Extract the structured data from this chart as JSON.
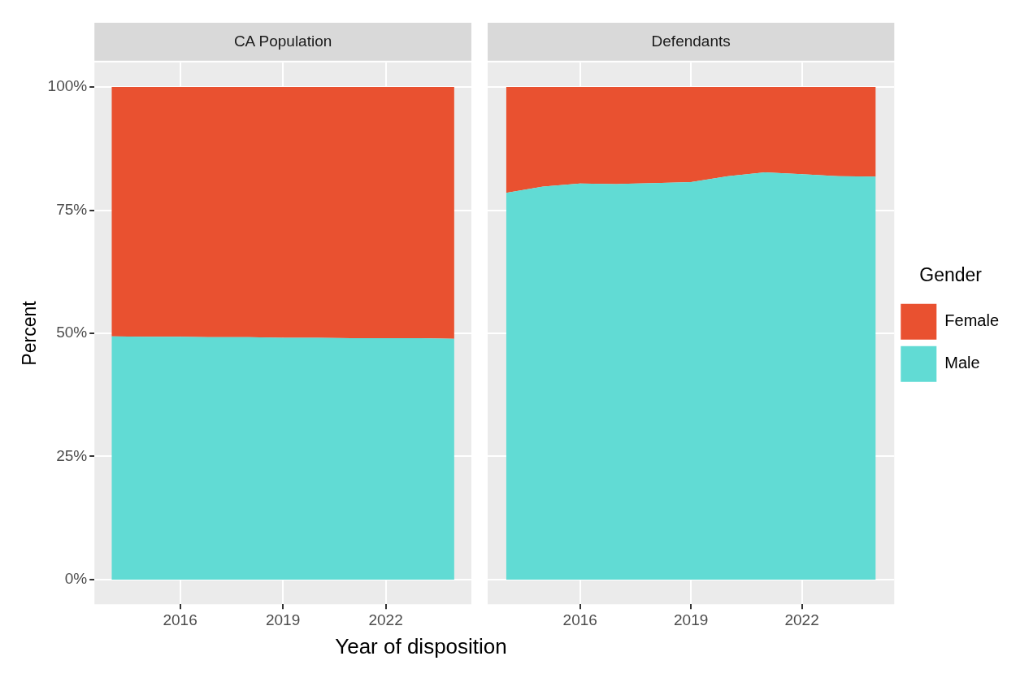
{
  "chart_data": [
    {
      "type": "area",
      "title": "CA Population",
      "xlabel": "Year of disposition",
      "ylabel": "Percent",
      "stacked": true,
      "x": [
        2014,
        2015,
        2016,
        2017,
        2018,
        2019,
        2020,
        2021,
        2022,
        2023,
        2024
      ],
      "series": [
        {
          "color": "#61dbd4",
          "values": [
            49.4,
            49.3,
            49.3,
            49.2,
            49.2,
            49.1,
            49.1,
            49.0,
            49.0,
            49.0,
            48.9
          ]
        },
        {
          "color": "#e95130",
          "values": [
            50.6,
            50.7,
            50.7,
            50.8,
            50.8,
            50.9,
            50.9,
            51.0,
            51.0,
            51.0,
            51.1
          ]
        }
      ],
      "xlim": [
        2013.5,
        2024.5
      ],
      "xticks": [
        2016,
        2019,
        2022
      ],
      "ylim": [
        -5,
        105
      ],
      "yticks": [
        {
          "value": 0,
          "label": "0%"
        },
        {
          "value": 25,
          "label": "25%"
        },
        {
          "value": 50,
          "label": "50%"
        },
        {
          "value": 75,
          "label": "75%"
        },
        {
          "value": 100,
          "label": "100%"
        }
      ],
      "grid": true
    },
    {
      "type": "area",
      "title": "Defendants",
      "stacked": true,
      "legend": "right",
      "legend_title": "Gender",
      "tick_labels": "x",
      "x": [
        2014,
        2015,
        2016,
        2017,
        2018,
        2019,
        2020,
        2021,
        2022,
        2023,
        2024
      ],
      "series": [
        {
          "name": "Male",
          "color": "#61dbd4",
          "values": [
            78.5,
            79.8,
            80.4,
            80.3,
            80.5,
            80.7,
            81.9,
            82.7,
            82.3,
            81.9,
            81.8
          ]
        },
        {
          "name": "Female",
          "color": "#e95130",
          "values": [
            21.5,
            20.2,
            19.6,
            19.7,
            19.5,
            19.3,
            18.1,
            17.3,
            17.7,
            18.1,
            18.2
          ]
        }
      ],
      "xlim": [
        2013.5,
        2024.5
      ],
      "xticks": [
        2016,
        2019,
        2022
      ],
      "ylim": [
        -5,
        105
      ],
      "yticks": [
        0,
        25,
        50,
        75,
        100
      ],
      "grid": true
    }
  ]
}
